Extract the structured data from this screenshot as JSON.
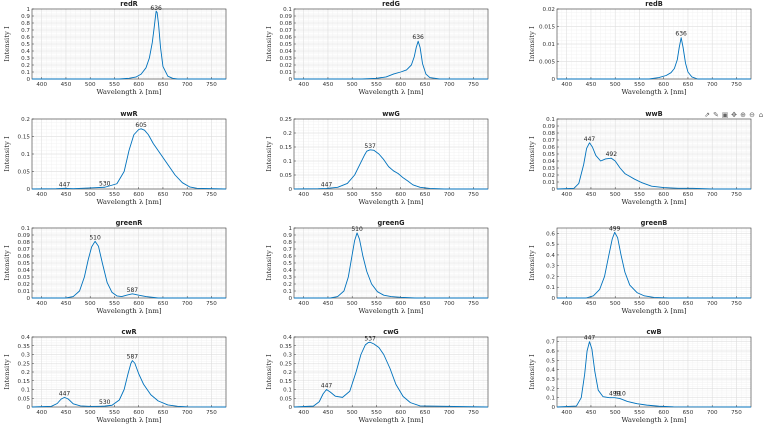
{
  "chart_data": [
    {
      "type": "line",
      "title": "redR",
      "xlabel": "Wavelength λ [nm]",
      "ylabel": "Intensity I",
      "xlim": [
        380,
        780
      ],
      "ylim": [
        0,
        1
      ],
      "yticks": [
        "0",
        "0.1",
        "0.2",
        "0.3",
        "0.4",
        "0.5",
        "0.6",
        "0.7",
        "0.8",
        "0.9",
        "1"
      ],
      "xticks": [
        "400",
        "450",
        "500",
        "550",
        "600",
        "650",
        "700",
        "750"
      ],
      "grid": true,
      "peak_labels": [
        {
          "x": 636,
          "y": 0.96,
          "text": "636"
        }
      ],
      "x": [
        380,
        560,
        580,
        595,
        605,
        615,
        622,
        628,
        632,
        634,
        636,
        638,
        641,
        645,
        650,
        660,
        670,
        680,
        780
      ],
      "y": [
        0,
        0,
        0.01,
        0.03,
        0.07,
        0.16,
        0.3,
        0.52,
        0.74,
        0.86,
        0.97,
        0.95,
        0.78,
        0.45,
        0.18,
        0.04,
        0.01,
        0,
        0
      ]
    },
    {
      "type": "line",
      "title": "redG",
      "xlabel": "Wavelength λ [nm]",
      "ylabel": "Intensity I",
      "xlim": [
        380,
        780
      ],
      "ylim": [
        0,
        0.1
      ],
      "yticks": [
        "0",
        "0.01",
        "0.02",
        "0.03",
        "0.04",
        "0.05",
        "0.06",
        "0.07",
        "0.08",
        "0.09",
        "0.1"
      ],
      "xticks": [
        "400",
        "450",
        "500",
        "550",
        "600",
        "650",
        "700",
        "750"
      ],
      "grid": true,
      "peak_labels": [
        {
          "x": 636,
          "y": 0.054,
          "text": "636"
        }
      ],
      "x": [
        380,
        520,
        550,
        570,
        585,
        600,
        612,
        622,
        628,
        632,
        636,
        640,
        645,
        652,
        660,
        680,
        780
      ],
      "y": [
        0,
        0,
        0.001,
        0.003,
        0.007,
        0.01,
        0.013,
        0.02,
        0.032,
        0.045,
        0.054,
        0.045,
        0.022,
        0.007,
        0.002,
        0,
        0
      ]
    },
    {
      "type": "line",
      "title": "redB",
      "xlabel": "Wavelength λ [nm]",
      "ylabel": "Intensity I",
      "xlim": [
        380,
        780
      ],
      "ylim": [
        0,
        0.02
      ],
      "yticks": [
        "0",
        "0.005",
        "0.01",
        "0.015",
        "0.02"
      ],
      "xticks": [
        "400",
        "450",
        "500",
        "550",
        "600",
        "650",
        "700",
        "750"
      ],
      "grid": true,
      "peak_labels": [
        {
          "x": 636,
          "y": 0.0118,
          "text": "636"
        }
      ],
      "x": [
        380,
        570,
        590,
        605,
        615,
        622,
        628,
        632,
        636,
        640,
        645,
        650,
        658,
        670,
        780
      ],
      "y": [
        0,
        0,
        0.0004,
        0.001,
        0.0018,
        0.003,
        0.0055,
        0.009,
        0.0118,
        0.009,
        0.0045,
        0.002,
        0.0006,
        0,
        0
      ]
    },
    {
      "type": "line",
      "title": "wwR",
      "xlabel": "Wavelength λ [nm]",
      "ylabel": "Intensity I",
      "xlim": [
        380,
        780
      ],
      "ylim": [
        0,
        0.2
      ],
      "yticks": [
        "0",
        "0.05",
        "0.1",
        "0.15",
        "0.2"
      ],
      "xticks": [
        "400",
        "450",
        "500",
        "550",
        "600",
        "650",
        "700",
        "750"
      ],
      "grid": true,
      "peak_labels": [
        {
          "x": 447,
          "y": 0.002,
          "text": "447"
        },
        {
          "x": 530,
          "y": 0.005,
          "text": "530"
        },
        {
          "x": 605,
          "y": 0.172,
          "text": "605"
        }
      ],
      "x": [
        380,
        430,
        447,
        465,
        500,
        530,
        555,
        570,
        580,
        590,
        600,
        605,
        612,
        620,
        630,
        645,
        660,
        675,
        690,
        705,
        720,
        780
      ],
      "y": [
        0,
        0.001,
        0.002,
        0.001,
        0.003,
        0.005,
        0.015,
        0.05,
        0.11,
        0.155,
        0.17,
        0.172,
        0.168,
        0.155,
        0.13,
        0.1,
        0.07,
        0.04,
        0.018,
        0.006,
        0.002,
        0
      ]
    },
    {
      "type": "line",
      "title": "wwG",
      "xlabel": "Wavelength λ [nm]",
      "ylabel": "Intensity I",
      "xlim": [
        380,
        780
      ],
      "ylim": [
        0,
        0.25
      ],
      "yticks": [
        "0",
        "0.05",
        "0.1",
        "0.15",
        "0.2",
        "0.25"
      ],
      "xticks": [
        "400",
        "450",
        "500",
        "550",
        "600",
        "650",
        "700",
        "750"
      ],
      "grid": true,
      "peak_labels": [
        {
          "x": 447,
          "y": 0.002,
          "text": "447"
        },
        {
          "x": 537,
          "y": 0.14,
          "text": "537"
        }
      ],
      "x": [
        380,
        430,
        447,
        470,
        490,
        505,
        515,
        525,
        530,
        537,
        545,
        555,
        565,
        575,
        585,
        595,
        605,
        615,
        625,
        640,
        660,
        690,
        780
      ],
      "y": [
        0,
        0.001,
        0.002,
        0.006,
        0.02,
        0.05,
        0.085,
        0.12,
        0.135,
        0.14,
        0.138,
        0.125,
        0.105,
        0.08,
        0.065,
        0.055,
        0.04,
        0.028,
        0.015,
        0.006,
        0.002,
        0,
        0
      ]
    },
    {
      "type": "line",
      "title": "wwB",
      "xlabel": "Wavelength λ [nm]",
      "ylabel": "Intensity I",
      "xlim": [
        380,
        780
      ],
      "ylim": [
        0,
        0.1
      ],
      "yticks": [
        "0",
        "0.01",
        "0.02",
        "0.03",
        "0.04",
        "0.05",
        "0.06",
        "0.07",
        "0.08",
        "0.09",
        "0.1"
      ],
      "xticks": [
        "400",
        "450",
        "500",
        "550",
        "600",
        "650",
        "700",
        "750"
      ],
      "grid": true,
      "peak_labels": [
        {
          "x": 447,
          "y": 0.066,
          "text": "447"
        },
        {
          "x": 492,
          "y": 0.044,
          "text": "492"
        }
      ],
      "x": [
        380,
        415,
        425,
        435,
        441,
        447,
        453,
        460,
        470,
        480,
        492,
        500,
        510,
        520,
        530,
        540,
        555,
        575,
        600,
        630,
        660,
        700,
        780
      ],
      "y": [
        0,
        0.001,
        0.008,
        0.035,
        0.058,
        0.066,
        0.06,
        0.048,
        0.04,
        0.043,
        0.044,
        0.04,
        0.03,
        0.022,
        0.018,
        0.014,
        0.009,
        0.004,
        0.002,
        0.001,
        0.001,
        0,
        0
      ]
    },
    {
      "type": "line",
      "title": "greenR",
      "xlabel": "Wavelength λ [nm]",
      "ylabel": "Intensity I",
      "xlim": [
        380,
        780
      ],
      "ylim": [
        0,
        0.1
      ],
      "yticks": [
        "0",
        "0.01",
        "0.02",
        "0.03",
        "0.04",
        "0.05",
        "0.06",
        "0.07",
        "0.08",
        "0.09",
        "0.1"
      ],
      "xticks": [
        "400",
        "450",
        "500",
        "550",
        "600",
        "650",
        "700",
        "750"
      ],
      "grid": true,
      "peak_labels": [
        {
          "x": 510,
          "y": 0.081,
          "text": "510"
        },
        {
          "x": 587,
          "y": 0.006,
          "text": "587"
        }
      ],
      "x": [
        380,
        450,
        465,
        478,
        488,
        496,
        503,
        510,
        517,
        525,
        535,
        545,
        555,
        565,
        575,
        587,
        600,
        615,
        640,
        780
      ],
      "y": [
        0,
        0,
        0.002,
        0.01,
        0.03,
        0.055,
        0.073,
        0.081,
        0.074,
        0.05,
        0.022,
        0.008,
        0.003,
        0.002,
        0.004,
        0.006,
        0.004,
        0.002,
        0,
        0
      ]
    },
    {
      "type": "line",
      "title": "greenG",
      "xlabel": "Wavelength λ [nm]",
      "ylabel": "Intensity I",
      "xlim": [
        380,
        780
      ],
      "ylim": [
        0,
        1
      ],
      "yticks": [
        "0",
        "0.1",
        "0.2",
        "0.3",
        "0.4",
        "0.5",
        "0.6",
        "0.7",
        "0.8",
        "0.9",
        "1"
      ],
      "xticks": [
        "400",
        "450",
        "500",
        "550",
        "600",
        "650",
        "700",
        "750"
      ],
      "grid": true,
      "peak_labels": [
        {
          "x": 510,
          "y": 0.93,
          "text": "510"
        }
      ],
      "x": [
        380,
        455,
        470,
        483,
        492,
        500,
        505,
        510,
        515,
        522,
        530,
        540,
        552,
        565,
        580,
        600,
        630,
        780
      ],
      "y": [
        0,
        0,
        0.02,
        0.1,
        0.3,
        0.62,
        0.82,
        0.93,
        0.84,
        0.6,
        0.38,
        0.2,
        0.09,
        0.04,
        0.02,
        0.01,
        0,
        0
      ]
    },
    {
      "type": "line",
      "title": "greenB",
      "xlabel": "Wavelength λ [nm]",
      "ylabel": "Intensity I",
      "xlim": [
        380,
        780
      ],
      "ylim": [
        0,
        0.65
      ],
      "yticks": [
        "0",
        "0.1",
        "0.2",
        "0.3",
        "0.4",
        "0.5",
        "0.6"
      ],
      "xticks": [
        "400",
        "450",
        "500",
        "550",
        "600",
        "650",
        "700",
        "750"
      ],
      "grid": true,
      "peak_labels": [
        {
          "x": 499,
          "y": 0.61,
          "text": "499"
        }
      ],
      "x": [
        380,
        440,
        455,
        468,
        478,
        487,
        494,
        499,
        505,
        512,
        520,
        530,
        545,
        560,
        580,
        610,
        780
      ],
      "y": [
        0,
        0,
        0.02,
        0.08,
        0.2,
        0.4,
        0.55,
        0.61,
        0.56,
        0.4,
        0.24,
        0.12,
        0.05,
        0.02,
        0.005,
        0,
        0
      ]
    },
    {
      "type": "line",
      "title": "cwR",
      "xlabel": "Wavelength λ [nm]",
      "ylabel": "Intensity I",
      "xlim": [
        380,
        780
      ],
      "ylim": [
        0,
        0.4
      ],
      "yticks": [
        "0",
        "0.05",
        "0.1",
        "0.15",
        "0.2",
        "0.25",
        "0.3",
        "0.35",
        "0.4"
      ],
      "xticks": [
        "400",
        "450",
        "500",
        "550",
        "600",
        "650",
        "700",
        "750"
      ],
      "grid": true,
      "peak_labels": [
        {
          "x": 447,
          "y": 0.055,
          "text": "447"
        },
        {
          "x": 530,
          "y": 0.005,
          "text": "530"
        },
        {
          "x": 587,
          "y": 0.265,
          "text": "587"
        }
      ],
      "x": [
        380,
        420,
        432,
        440,
        447,
        455,
        465,
        480,
        500,
        520,
        530,
        545,
        560,
        570,
        578,
        584,
        587,
        592,
        600,
        610,
        625,
        640,
        660,
        680,
        700,
        780
      ],
      "y": [
        0,
        0.004,
        0.02,
        0.045,
        0.055,
        0.045,
        0.018,
        0.006,
        0.003,
        0.004,
        0.005,
        0.01,
        0.04,
        0.1,
        0.19,
        0.25,
        0.265,
        0.25,
        0.19,
        0.13,
        0.07,
        0.035,
        0.012,
        0.004,
        0.001,
        0
      ]
    },
    {
      "type": "line",
      "title": "cwG",
      "xlabel": "Wavelength λ [nm]",
      "ylabel": "Intensity I",
      "xlim": [
        380,
        780
      ],
      "ylim": [
        0,
        0.4
      ],
      "yticks": [
        "0",
        "0.05",
        "0.1",
        "0.15",
        "0.2",
        "0.25",
        "0.3",
        "0.35",
        "0.4"
      ],
      "xticks": [
        "400",
        "450",
        "500",
        "550",
        "600",
        "650",
        "700",
        "750"
      ],
      "grid": true,
      "peak_labels": [
        {
          "x": 447,
          "y": 0.1,
          "text": "447"
        },
        {
          "x": 537,
          "y": 0.37,
          "text": "537"
        }
      ],
      "x": [
        380,
        420,
        432,
        440,
        447,
        455,
        465,
        480,
        495,
        508,
        518,
        527,
        533,
        537,
        545,
        555,
        565,
        578,
        590,
        605,
        620,
        640,
        780
      ],
      "y": [
        0,
        0.005,
        0.03,
        0.075,
        0.1,
        0.085,
        0.062,
        0.055,
        0.09,
        0.2,
        0.3,
        0.355,
        0.368,
        0.37,
        0.36,
        0.34,
        0.3,
        0.22,
        0.13,
        0.06,
        0.025,
        0.006,
        0
      ]
    },
    {
      "type": "line",
      "title": "cwB",
      "xlabel": "Wavelength λ [nm]",
      "ylabel": "Intensity I",
      "xlim": [
        380,
        780
      ],
      "ylim": [
        0,
        0.75
      ],
      "yticks": [
        "0",
        "0.1",
        "0.2",
        "0.3",
        "0.4",
        "0.5",
        "0.6",
        "0.7"
      ],
      "xticks": [
        "400",
        "450",
        "500",
        "550",
        "600",
        "650",
        "700",
        "750"
      ],
      "grid": true,
      "peak_labels": [
        {
          "x": 447,
          "y": 0.7,
          "text": "447"
        },
        {
          "x": 499,
          "y": 0.1,
          "text": "499"
        },
        {
          "x": 510,
          "y": 0.1,
          "text": "510"
        }
      ],
      "x": [
        380,
        420,
        430,
        437,
        442,
        447,
        452,
        458,
        465,
        475,
        488,
        499,
        510,
        525,
        545,
        565,
        590,
        620,
        780
      ],
      "y": [
        0,
        0.01,
        0.1,
        0.35,
        0.6,
        0.7,
        0.62,
        0.38,
        0.18,
        0.11,
        0.1,
        0.1,
        0.09,
        0.06,
        0.035,
        0.02,
        0.008,
        0.002,
        0
      ]
    }
  ],
  "colors": {
    "line": "#0072bd",
    "grid_major": "#dcdcdc",
    "grid_minor": "#f0f0f0",
    "axis": "#3a3a3a"
  },
  "toolbar": {
    "icons": [
      "export-icon",
      "brush-icon",
      "datatip-icon",
      "pan-icon",
      "zoom-in-icon",
      "zoom-out-icon",
      "home-icon"
    ],
    "glyphs": [
      "⇗",
      "✎",
      "▣",
      "✥",
      "⊕",
      "⊖",
      "⌂"
    ]
  }
}
